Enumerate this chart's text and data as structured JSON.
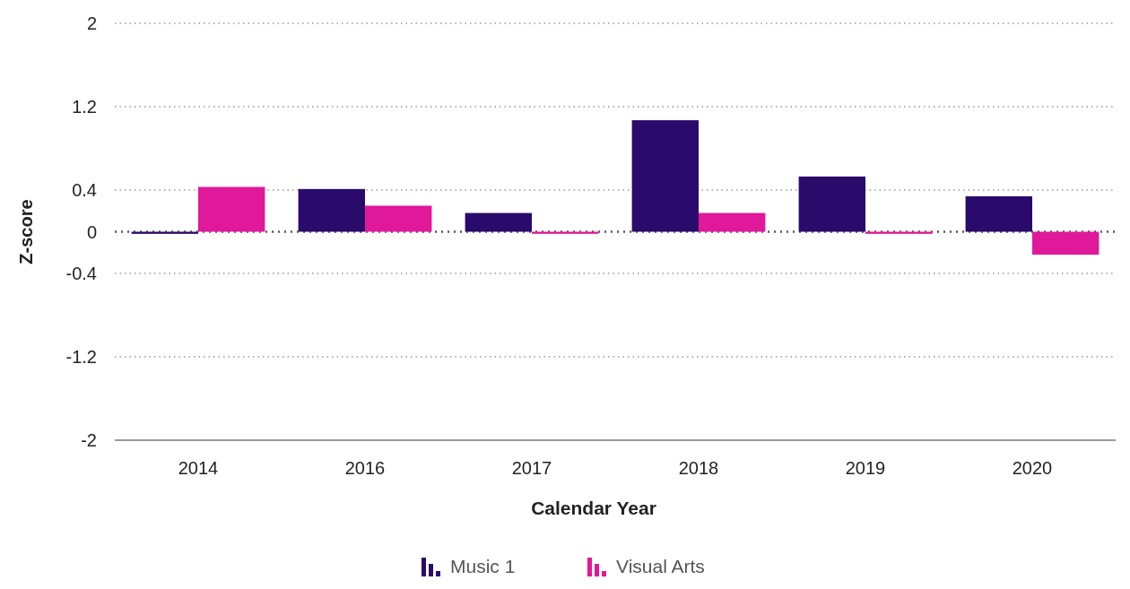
{
  "chart_data": {
    "type": "bar",
    "xlabel": "Calendar Year",
    "ylabel": "Z-score",
    "categories": [
      "2014",
      "2016",
      "2017",
      "2018",
      "2019",
      "2020"
    ],
    "series": [
      {
        "name": "Music 1",
        "color": "#2a0a6b",
        "values": [
          -0.02,
          0.41,
          0.18,
          1.07,
          0.53,
          0.34
        ]
      },
      {
        "name": "Visual Arts",
        "color": "#e0189a",
        "values": [
          0.43,
          0.25,
          -0.02,
          0.18,
          -0.02,
          -0.22
        ]
      }
    ],
    "ylim": [
      -2,
      2
    ],
    "yticks": [
      -2,
      -1.2,
      -0.4,
      0,
      0.4,
      1.2,
      2
    ],
    "grid": "y",
    "legend": "bottom",
    "ref_lines": [
      {
        "axis": "y",
        "value": 0,
        "color": "#555555",
        "line_style": "dotted"
      }
    ]
  }
}
